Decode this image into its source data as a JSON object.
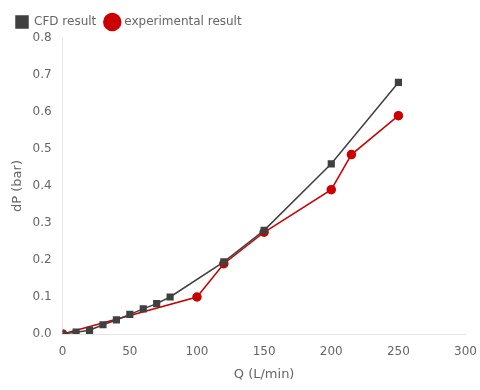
{
  "chart_data": {
    "type": "line",
    "x_label": "Q (L/min)",
    "y_label": "dP (bar)",
    "series": [
      {
        "name": "CFD result",
        "color": "#404040",
        "marker": "square",
        "x": [
          0,
          10,
          20,
          30,
          40,
          50,
          60,
          70,
          80,
          120,
          150,
          200,
          250
        ],
        "values": [
          0,
          0.005,
          0.01,
          0.025,
          0.038,
          0.053,
          0.068,
          0.082,
          0.1,
          0.195,
          0.28,
          0.46,
          0.68
        ]
      },
      {
        "name": "experimental result",
        "color": "#cc0000",
        "marker": "circle",
        "x": [
          0,
          100,
          120,
          150,
          200,
          215,
          250
        ],
        "values": [
          0,
          0.1,
          0.19,
          0.275,
          0.39,
          0.485,
          0.59
        ]
      }
    ],
    "xlim": [
      0,
      300
    ],
    "ylim": [
      0,
      0.8
    ],
    "xticks": [
      0,
      50,
      100,
      150,
      200,
      250,
      300
    ],
    "yticks": [
      {
        "value": 0,
        "label": "0.0"
      },
      0.1,
      0.2,
      0.3,
      0.4,
      0.5,
      0.6,
      0.7,
      0.8
    ],
    "grid": false,
    "legend": "upper left"
  }
}
